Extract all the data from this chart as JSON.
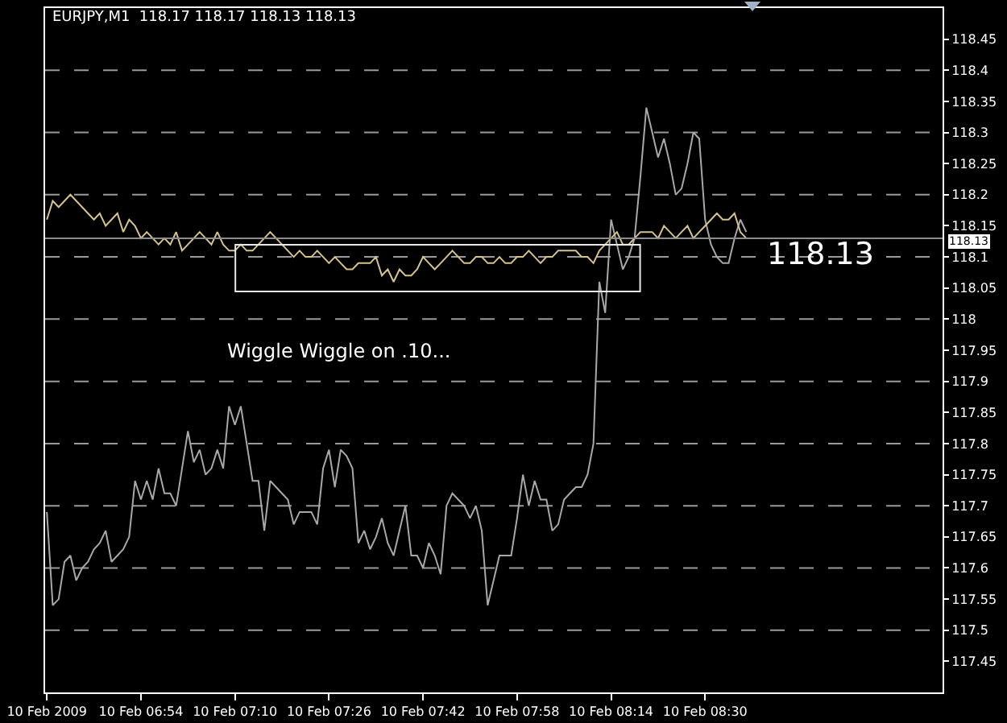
{
  "chart_data": {
    "type": "line",
    "title": "EURJPY,M1  118.17 118.17 118.13 118.13",
    "categories": [
      "10 Feb 2009",
      null,
      null,
      null,
      null,
      null,
      null,
      null,
      null,
      null,
      null,
      null,
      null,
      null,
      null,
      null,
      "10 Feb 06:54",
      null,
      null,
      null,
      null,
      null,
      null,
      null,
      null,
      null,
      null,
      null,
      null,
      null,
      null,
      null,
      "10 Feb 07:10",
      null,
      null,
      null,
      null,
      null,
      null,
      null,
      null,
      null,
      null,
      null,
      null,
      null,
      null,
      null,
      "10 Feb 07:26",
      null,
      null,
      null,
      null,
      null,
      null,
      null,
      null,
      null,
      null,
      null,
      null,
      null,
      null,
      null,
      "10 Feb 07:42",
      null,
      null,
      null,
      null,
      null,
      null,
      null,
      null,
      null,
      null,
      null,
      null,
      null,
      null,
      null,
      "10 Feb 07:58",
      null,
      null,
      null,
      null,
      null,
      null,
      null,
      null,
      null,
      null,
      null,
      null,
      null,
      null,
      null,
      "10 Feb 08:14",
      null,
      null,
      null,
      null,
      null,
      null,
      null,
      null,
      null,
      null,
      null,
      null,
      null,
      null,
      null,
      "10 Feb 08:30",
      null,
      null,
      null,
      null,
      null,
      null,
      null
    ],
    "ylim": [
      117.4,
      118.5
    ],
    "yticks": [
      117.45,
      117.5,
      117.55,
      117.6,
      117.65,
      117.7,
      117.75,
      117.8,
      117.85,
      117.9,
      117.95,
      118.0,
      118.05,
      118.1,
      118.15,
      118.2,
      118.25,
      118.3,
      118.35,
      118.4,
      118.45
    ],
    "grid": "y",
    "marker": "none",
    "line_style": "solid",
    "series": [
      {
        "color": "#a8a8a8",
        "values": [
          117.69,
          117.54,
          117.55,
          117.61,
          117.62,
          117.58,
          117.6,
          117.61,
          117.63,
          117.64,
          117.66,
          117.61,
          117.62,
          117.63,
          117.65,
          117.74,
          117.71,
          117.74,
          117.71,
          117.76,
          117.72,
          117.72,
          117.7,
          117.76,
          117.82,
          117.77,
          117.79,
          117.75,
          117.76,
          117.79,
          117.76,
          117.86,
          117.83,
          117.86,
          117.8,
          117.74,
          117.74,
          117.66,
          117.74,
          117.73,
          117.72,
          117.71,
          117.67,
          117.69,
          117.69,
          117.69,
          117.67,
          117.76,
          117.79,
          117.73,
          117.79,
          117.78,
          117.76,
          117.64,
          117.66,
          117.63,
          117.65,
          117.68,
          117.64,
          117.62,
          117.66,
          117.7,
          117.62,
          117.62,
          117.6,
          117.64,
          117.62,
          117.59,
          117.7,
          117.72,
          117.71,
          117.7,
          117.68,
          117.7,
          117.66,
          117.54,
          117.58,
          117.62,
          117.62,
          117.62,
          117.68,
          117.75,
          117.7,
          117.74,
          117.71,
          117.71,
          117.66,
          117.67,
          117.71,
          117.72,
          117.73,
          117.73,
          117.75,
          117.8,
          118.06,
          118.01,
          118.16,
          118.12,
          118.08,
          118.1,
          118.13,
          118.23,
          118.34,
          118.3,
          118.26,
          118.29,
          118.25,
          118.2,
          118.21,
          118.25,
          118.3,
          118.29,
          118.16,
          118.12,
          118.1,
          118.09,
          118.09,
          118.13,
          118.16,
          118.14
        ]
      },
      {
        "color": "#d4c48c",
        "values": [
          118.16,
          118.19,
          118.18,
          118.19,
          118.2,
          118.19,
          118.18,
          118.17,
          118.16,
          118.17,
          118.15,
          118.16,
          118.17,
          118.14,
          118.16,
          118.15,
          118.13,
          118.14,
          118.13,
          118.12,
          118.13,
          118.12,
          118.14,
          118.11,
          118.12,
          118.13,
          118.14,
          118.13,
          118.12,
          118.14,
          118.12,
          118.11,
          118.11,
          118.12,
          118.11,
          118.11,
          118.12,
          118.13,
          118.14,
          118.13,
          118.12,
          118.11,
          118.1,
          118.11,
          118.1,
          118.1,
          118.11,
          118.1,
          118.09,
          118.1,
          118.09,
          118.08,
          118.08,
          118.09,
          118.09,
          118.09,
          118.1,
          118.07,
          118.08,
          118.06,
          118.08,
          118.07,
          118.07,
          118.08,
          118.1,
          118.09,
          118.08,
          118.09,
          118.1,
          118.11,
          118.1,
          118.09,
          118.09,
          118.1,
          118.1,
          118.09,
          118.09,
          118.1,
          118.09,
          118.09,
          118.1,
          118.1,
          118.11,
          118.1,
          118.09,
          118.1,
          118.1,
          118.11,
          118.11,
          118.11,
          118.11,
          118.1,
          118.1,
          118.09,
          118.11,
          118.12,
          118.13,
          118.14,
          118.12,
          118.12,
          118.13,
          118.14,
          118.14,
          118.14,
          118.13,
          118.15,
          118.14,
          118.13,
          118.14,
          118.15,
          118.13,
          118.14,
          118.15,
          118.16,
          118.17,
          118.16,
          118.16,
          118.17,
          118.14,
          118.13
        ]
      }
    ],
    "ref_lines": [
      {
        "axis": "y",
        "value": 118.13,
        "label": "118.13",
        "color": "#8c8c8c"
      }
    ],
    "annotations": [
      "118.13",
      "Wiggle Wiggle on .10..."
    ]
  }
}
